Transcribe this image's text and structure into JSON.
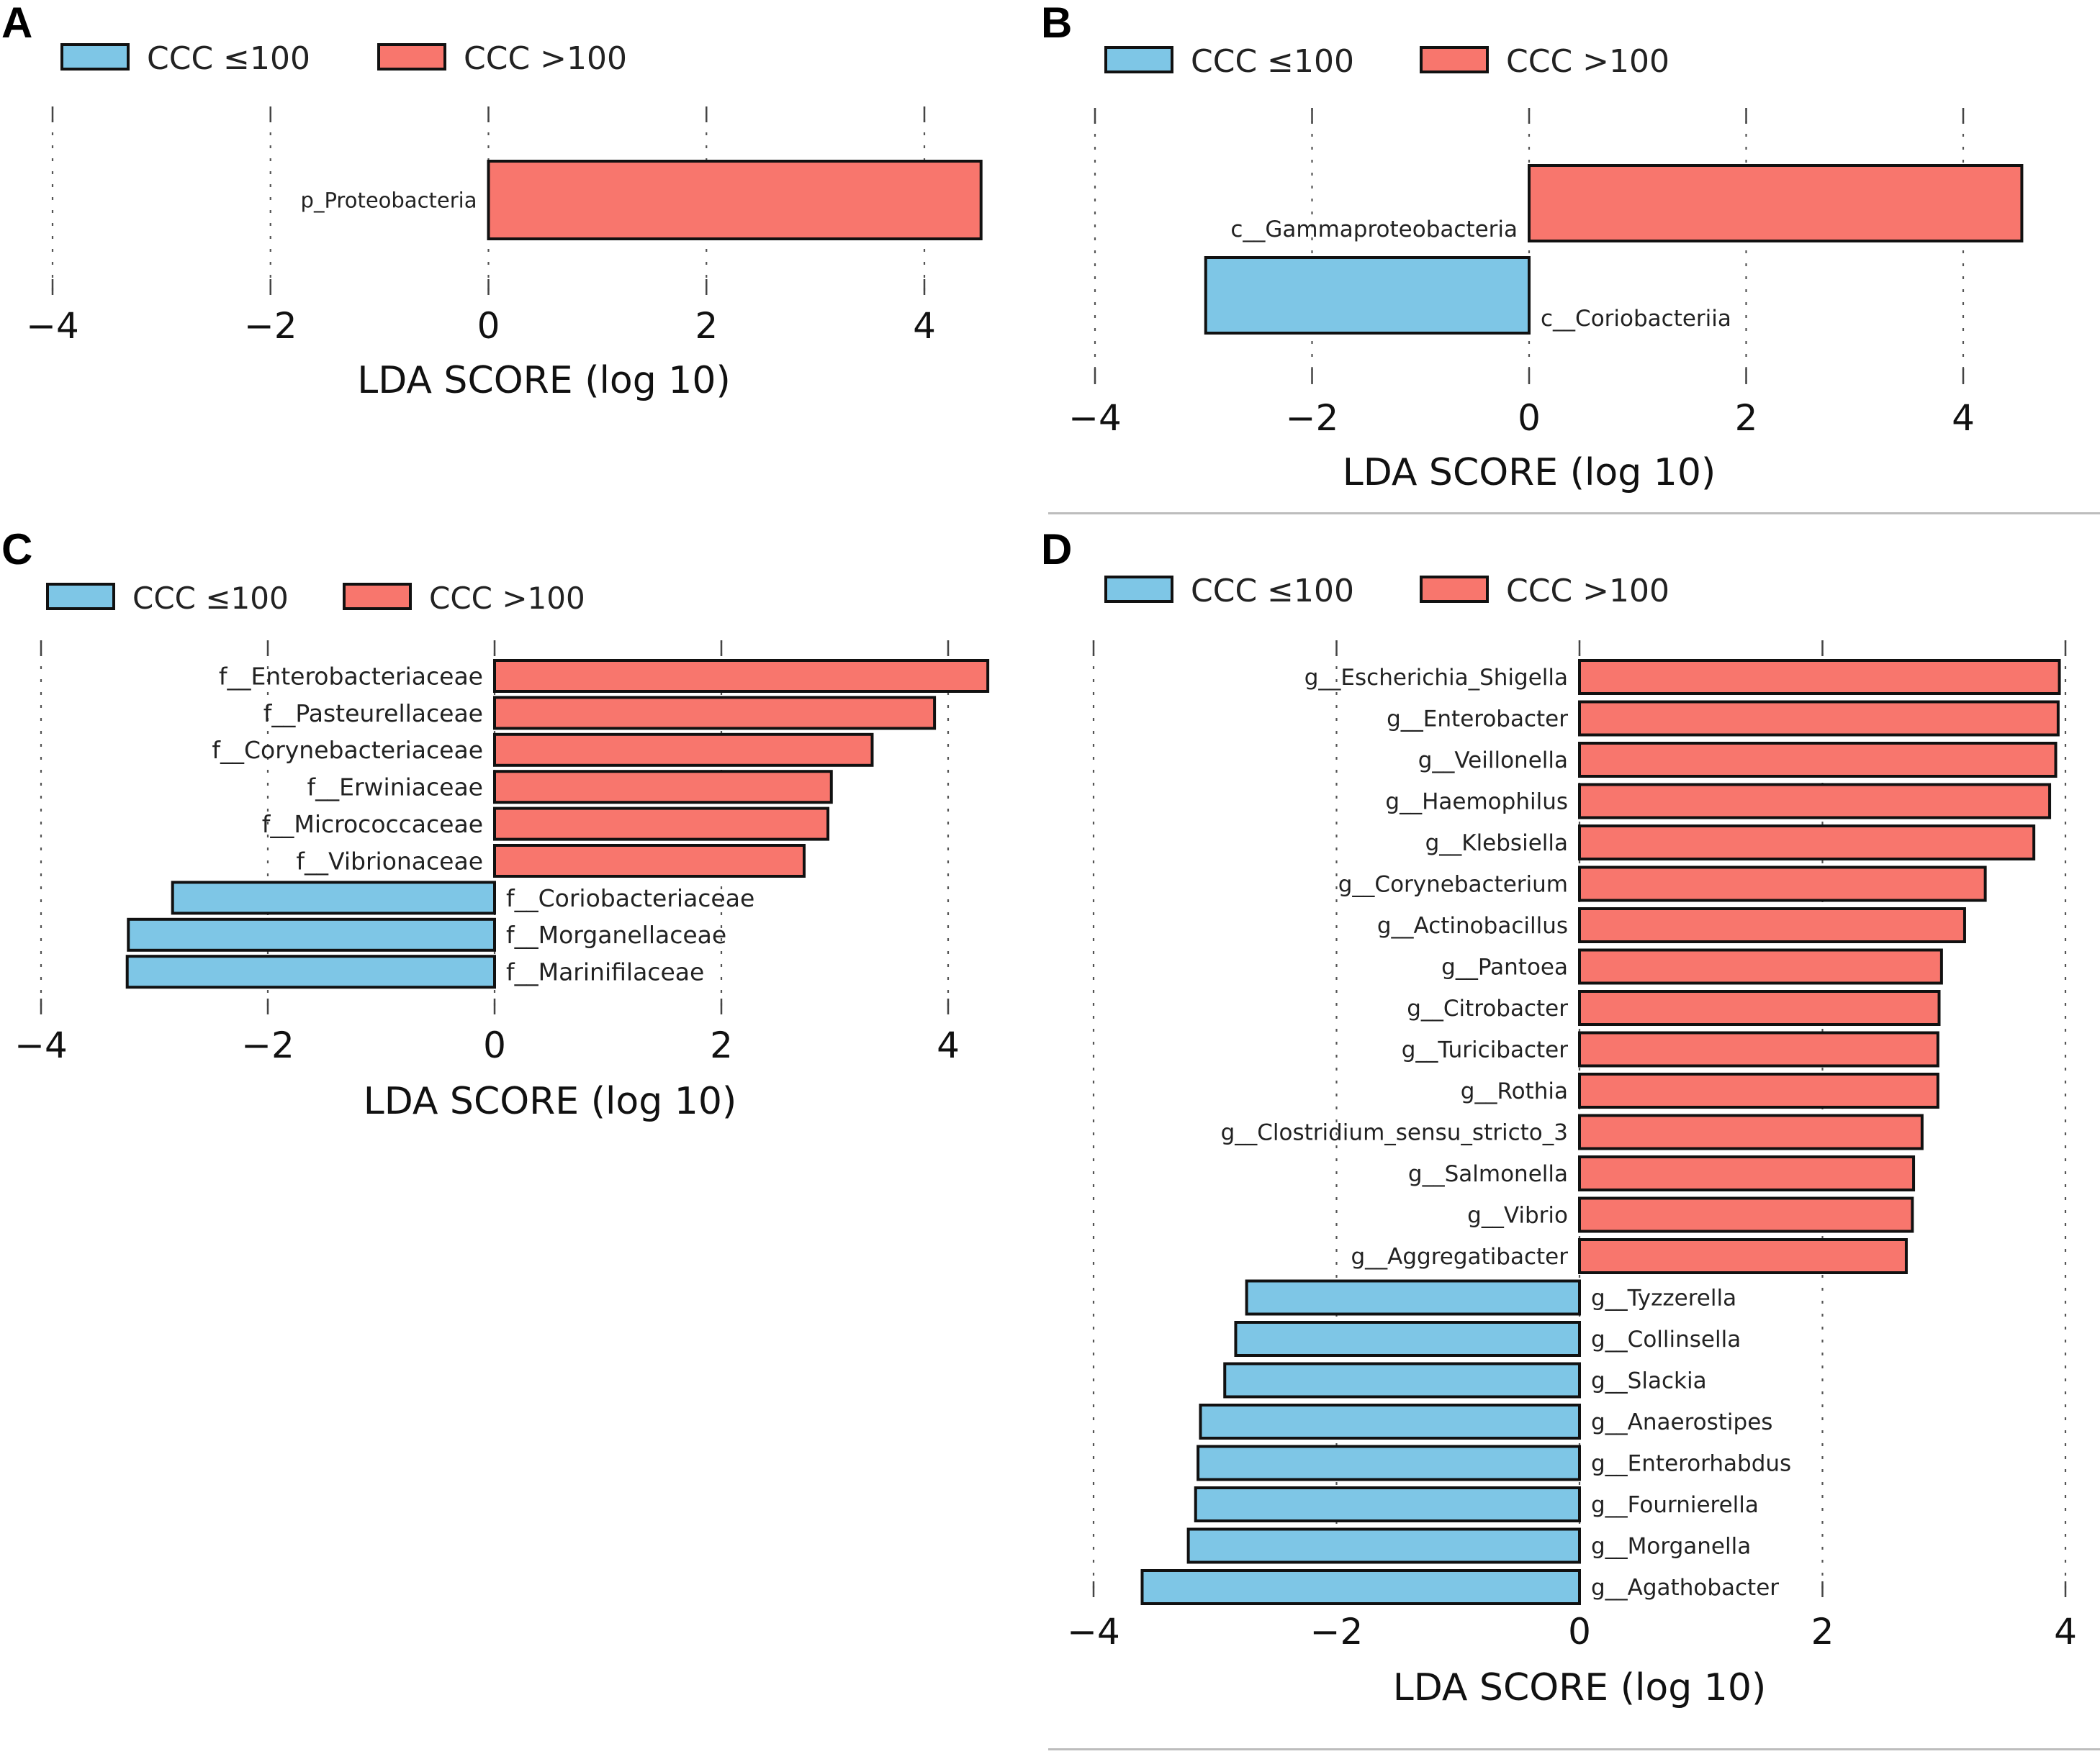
{
  "colors": {
    "low": "#7ec6e6",
    "high": "#f8766d",
    "edge": "#111111"
  },
  "chart_data": [
    {
      "panel": "A",
      "type": "bar",
      "orientation": "horizontal",
      "legend": [
        {
          "label": "CCC ≤100",
          "color": "#7ec6e6"
        },
        {
          "label": "CCC >100",
          "color": "#f8766d"
        }
      ],
      "legend_position": "top-left",
      "xlabel": "LDA SCORE (log 10)",
      "xlim": [
        -4,
        4.7
      ],
      "xticks": [
        -4,
        -2,
        0,
        2,
        4
      ],
      "xtick_labels": [
        "−4",
        "−2",
        "0",
        "2",
        "4"
      ],
      "grid": "vertical dashed",
      "categories": [
        "p_Proteobacteria"
      ],
      "values": [
        4.52
      ],
      "groups": [
        "CCC >100"
      ]
    },
    {
      "panel": "B",
      "type": "bar",
      "orientation": "horizontal",
      "legend": [
        {
          "label": "CCC ≤100",
          "color": "#7ec6e6"
        },
        {
          "label": "CCC >100",
          "color": "#f8766d"
        }
      ],
      "legend_position": "top-left",
      "xlabel": "LDA SCORE (log 10)",
      "xlim": [
        -4,
        4.7
      ],
      "xticks": [
        -4,
        -2,
        0,
        2,
        4
      ],
      "xtick_labels": [
        "−4",
        "−2",
        "0",
        "2",
        "4"
      ],
      "grid": "vertical dashed",
      "categories": [
        "c__Gammaproteobacteria",
        "c__Coriobacteriia"
      ],
      "values": [
        4.54,
        -2.98
      ],
      "groups": [
        "CCC >100",
        "CCC ≤100"
      ]
    },
    {
      "panel": "C",
      "type": "bar",
      "orientation": "horizontal",
      "legend": [
        {
          "label": "CCC ≤100",
          "color": "#7ec6e6"
        },
        {
          "label": "CCC >100",
          "color": "#f8766d"
        }
      ],
      "legend_position": "top-left",
      "xlabel": "LDA SCORE (log 10)",
      "xlim": [
        -4,
        4.4
      ],
      "xticks": [
        -4,
        -2,
        0,
        2,
        4
      ],
      "xtick_labels": [
        "−4",
        "−2",
        "0",
        "2",
        "4"
      ],
      "grid": "vertical dashed",
      "categories": [
        "f__Enterobacteriaceae",
        "f__Pasteurellaceae",
        "f__Corynebacteriaceae",
        "f__Erwiniaceae",
        "f__Micrococcaceae",
        "f__Vibrionaceae",
        "f__Coriobacteriaceae",
        "f__Morganellaceae",
        "f__Marinifilaceae"
      ],
      "values": [
        4.35,
        3.88,
        3.33,
        2.97,
        2.94,
        2.73,
        -2.84,
        -3.23,
        -3.24
      ],
      "groups": [
        "CCC >100",
        "CCC >100",
        "CCC >100",
        "CCC >100",
        "CCC >100",
        "CCC >100",
        "CCC ≤100",
        "CCC ≤100",
        "CCC ≤100"
      ]
    },
    {
      "panel": "D",
      "type": "bar",
      "orientation": "horizontal",
      "legend": [
        {
          "label": "CCC ≤100",
          "color": "#7ec6e6"
        },
        {
          "label": "CCC >100",
          "color": "#f8766d"
        }
      ],
      "legend_position": "top-left",
      "xlabel": "LDA SCORE (log 10)",
      "xlim": [
        -4,
        4
      ],
      "xticks": [
        -4,
        -2,
        0,
        2,
        4
      ],
      "xtick_labels": [
        "−4",
        "−2",
        "0",
        "2",
        "4"
      ],
      "grid": "vertical dashed",
      "categories": [
        "g__Escherichia_Shigella",
        "g__Enterobacter",
        "g__Veillonella",
        "g__Haemophilus",
        "g__Klebsiella",
        "g__Corynebacterium",
        "g__Actinobacillus",
        "g__Pantoea",
        "g__Citrobacter",
        "g__Turicibacter",
        "g__Rothia",
        "g__Clostridium_sensu_stricto_3",
        "g__Salmonella",
        "g__Vibrio",
        "g__Aggregatibacter",
        "g__Tyzzerella",
        "g__Collinsella",
        "g__Slackia",
        "g__Anaerostipes",
        "g__Enterorhabdus",
        "g__Fournierella",
        "g__Morganella",
        "g__Agathobacter"
      ],
      "values": [
        3.95,
        3.94,
        3.92,
        3.87,
        3.74,
        3.34,
        3.17,
        2.98,
        2.96,
        2.95,
        2.95,
        2.82,
        2.75,
        2.74,
        2.69,
        -2.74,
        -2.83,
        -2.92,
        -3.12,
        -3.14,
        -3.16,
        -3.22,
        -3.6
      ],
      "groups": [
        "CCC >100",
        "CCC >100",
        "CCC >100",
        "CCC >100",
        "CCC >100",
        "CCC >100",
        "CCC >100",
        "CCC >100",
        "CCC >100",
        "CCC >100",
        "CCC >100",
        "CCC >100",
        "CCC >100",
        "CCC >100",
        "CCC >100",
        "CCC ≤100",
        "CCC ≤100",
        "CCC ≤100",
        "CCC ≤100",
        "CCC ≤100",
        "CCC ≤100",
        "CCC ≤100",
        "CCC ≤100"
      ]
    }
  ]
}
